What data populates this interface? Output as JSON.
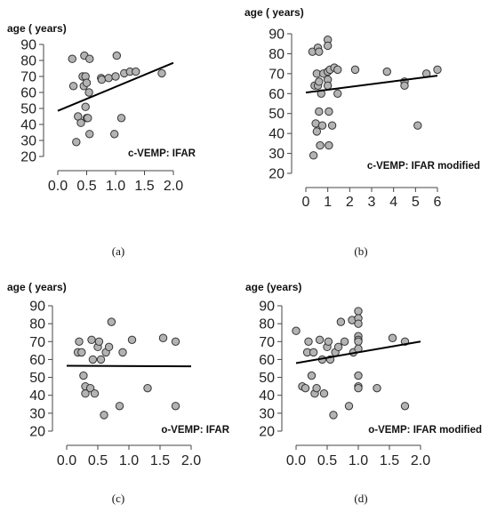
{
  "chart_data": [
    {
      "type": "scatter",
      "panel_caption": "(a)",
      "ylabel": "age ( years)",
      "annotation": "c-VEMP: IFAR",
      "xlim": [
        0,
        2
      ],
      "ylim": [
        20,
        90
      ],
      "xticks": [
        "0.0",
        "0.5",
        "1.0",
        "1.5",
        "2.0"
      ],
      "yticks": [
        "20",
        "30",
        "40",
        "50",
        "60",
        "70",
        "80",
        "90"
      ],
      "regression": [
        [
          0.0,
          48.5
        ],
        [
          2.0,
          78.5
        ]
      ],
      "points": [
        [
          0.25,
          81
        ],
        [
          0.27,
          64
        ],
        [
          0.32,
          29
        ],
        [
          0.35,
          45
        ],
        [
          0.4,
          41
        ],
        [
          0.43,
          70
        ],
        [
          0.45,
          64
        ],
        [
          0.46,
          83
        ],
        [
          0.48,
          70
        ],
        [
          0.48,
          51
        ],
        [
          0.5,
          44
        ],
        [
          0.5,
          66
        ],
        [
          0.52,
          44
        ],
        [
          0.54,
          60
        ],
        [
          0.55,
          34
        ],
        [
          0.55,
          81
        ],
        [
          0.75,
          69
        ],
        [
          0.76,
          68
        ],
        [
          0.88,
          69
        ],
        [
          0.98,
          34
        ],
        [
          1.0,
          70
        ],
        [
          1.02,
          83
        ],
        [
          1.1,
          44
        ],
        [
          1.15,
          72
        ],
        [
          1.25,
          73
        ],
        [
          1.35,
          73
        ],
        [
          1.8,
          72
        ]
      ]
    },
    {
      "type": "scatter",
      "panel_caption": "(b)",
      "ylabel": "age ( years)",
      "annotation": "c-VEMP: IFAR modified",
      "xlim": [
        0,
        6
      ],
      "ylim": [
        20,
        90
      ],
      "xticks": [
        "0",
        "1",
        "2",
        "3",
        "4",
        "5",
        "6"
      ],
      "yticks": [
        "20",
        "30",
        "40",
        "50",
        "60",
        "70",
        "80",
        "90"
      ],
      "regression": [
        [
          0.0,
          60.5
        ],
        [
          6.0,
          69
        ]
      ],
      "points": [
        [
          0.3,
          81
        ],
        [
          0.35,
          29
        ],
        [
          0.4,
          64
        ],
        [
          0.45,
          45
        ],
        [
          0.5,
          41
        ],
        [
          0.5,
          70
        ],
        [
          0.55,
          83
        ],
        [
          0.55,
          64
        ],
        [
          0.6,
          51
        ],
        [
          0.6,
          81
        ],
        [
          0.6,
          66
        ],
        [
          0.65,
          34
        ],
        [
          0.7,
          60
        ],
        [
          0.75,
          44
        ],
        [
          0.8,
          70
        ],
        [
          1.0,
          87
        ],
        [
          1.0,
          84
        ],
        [
          1.0,
          71
        ],
        [
          1.0,
          67
        ],
        [
          1.0,
          64
        ],
        [
          1.05,
          51
        ],
        [
          1.05,
          34
        ],
        [
          1.1,
          72
        ],
        [
          1.2,
          44
        ],
        [
          1.3,
          73
        ],
        [
          1.45,
          60
        ],
        [
          1.45,
          72
        ],
        [
          2.25,
          72
        ],
        [
          3.7,
          71
        ],
        [
          4.5,
          66
        ],
        [
          4.5,
          64
        ],
        [
          5.1,
          44
        ],
        [
          5.5,
          70
        ],
        [
          6.0,
          72
        ]
      ]
    },
    {
      "type": "scatter",
      "panel_caption": "(c)",
      "ylabel": "age ( years)",
      "annotation": "o-VEMP: IFAR",
      "xlim": [
        0,
        2
      ],
      "ylim": [
        20,
        90
      ],
      "xticks": [
        "0.0",
        "0.5",
        "1.0",
        "1.5",
        "2.0"
      ],
      "yticks": [
        "20",
        "30",
        "40",
        "50",
        "60",
        "70",
        "80",
        "90"
      ],
      "regression": [
        [
          0.0,
          56.5
        ],
        [
          2.0,
          56.2
        ]
      ],
      "points": [
        [
          0.18,
          64
        ],
        [
          0.2,
          70
        ],
        [
          0.24,
          64
        ],
        [
          0.27,
          51
        ],
        [
          0.3,
          45
        ],
        [
          0.3,
          41
        ],
        [
          0.38,
          44
        ],
        [
          0.4,
          71
        ],
        [
          0.42,
          60
        ],
        [
          0.45,
          41
        ],
        [
          0.5,
          67
        ],
        [
          0.52,
          70
        ],
        [
          0.55,
          60
        ],
        [
          0.6,
          29
        ],
        [
          0.63,
          64
        ],
        [
          0.68,
          67
        ],
        [
          0.72,
          81
        ],
        [
          0.9,
          64
        ],
        [
          0.85,
          34
        ],
        [
          1.05,
          71
        ],
        [
          1.3,
          44
        ],
        [
          1.55,
          72
        ],
        [
          1.75,
          34
        ],
        [
          1.75,
          70
        ]
      ]
    },
    {
      "type": "scatter",
      "panel_caption": "(d)",
      "ylabel": "age (years)",
      "annotation": "o-VEMP: IFAR modified",
      "xlim": [
        0,
        2
      ],
      "ylim": [
        20,
        90
      ],
      "xticks": [
        "0.0",
        "0.5",
        "1.0",
        "1.5",
        "2.0"
      ],
      "yticks": [
        "20",
        "30",
        "40",
        "50",
        "60",
        "70",
        "80",
        "90"
      ],
      "regression": [
        [
          0.0,
          58
        ],
        [
          2.0,
          70
        ]
      ],
      "points": [
        [
          0.0,
          76
        ],
        [
          0.1,
          45
        ],
        [
          0.15,
          44
        ],
        [
          0.18,
          64
        ],
        [
          0.2,
          70
        ],
        [
          0.25,
          51
        ],
        [
          0.28,
          64
        ],
        [
          0.3,
          41
        ],
        [
          0.33,
          44
        ],
        [
          0.38,
          71
        ],
        [
          0.42,
          60
        ],
        [
          0.45,
          41
        ],
        [
          0.5,
          67
        ],
        [
          0.52,
          70
        ],
        [
          0.55,
          60
        ],
        [
          0.6,
          29
        ],
        [
          0.63,
          64
        ],
        [
          0.68,
          67
        ],
        [
          0.72,
          81
        ],
        [
          0.78,
          70
        ],
        [
          0.85,
          34
        ],
        [
          0.9,
          82
        ],
        [
          0.92,
          64
        ],
        [
          1.0,
          87
        ],
        [
          1.0,
          83
        ],
        [
          1.0,
          80
        ],
        [
          1.0,
          73
        ],
        [
          1.0,
          71
        ],
        [
          1.0,
          70
        ],
        [
          1.0,
          66
        ],
        [
          1.0,
          51
        ],
        [
          1.0,
          45
        ],
        [
          1.0,
          44
        ],
        [
          1.3,
          44
        ],
        [
          1.55,
          72
        ],
        [
          1.75,
          34
        ],
        [
          1.75,
          70
        ]
      ]
    }
  ]
}
